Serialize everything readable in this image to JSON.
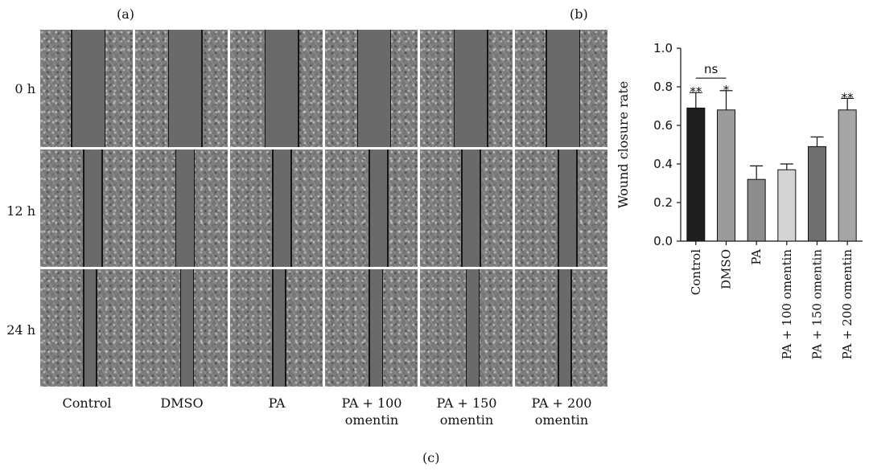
{
  "panel_labels": {
    "a": "(a)",
    "b": "(b)",
    "c": "(c)"
  },
  "micrographs": {
    "time_labels": [
      "0 h",
      "12 h",
      "24 h"
    ],
    "groups": [
      {
        "label_line1": "Control",
        "label_line2": ""
      },
      {
        "label_line1": "DMSO",
        "label_line2": ""
      },
      {
        "label_line1": "PA",
        "label_line2": ""
      },
      {
        "label_line1": "PA + 100",
        "label_line2": "omentin"
      },
      {
        "label_line1": "PA + 150",
        "label_line2": "omentin"
      },
      {
        "label_line1": "PA + 200",
        "label_line2": "omentin"
      }
    ],
    "colors": {
      "cells": "#7b7b7b",
      "wound_gap": "#6a6a6a",
      "wound_edge": "#151515"
    }
  },
  "chart_data": {
    "type": "bar",
    "title": "",
    "xlabel": "",
    "ylabel": "Wound closure rate",
    "ylim": [
      0,
      1.0
    ],
    "yticks": [
      "0.0",
      "0.2",
      "0.4",
      "0.6",
      "0.8",
      "1.0"
    ],
    "categories": [
      "Control",
      "DMSO",
      "PA",
      "PA + 100 omentin",
      "PA + 150 omentin",
      "PA + 200 omentin"
    ],
    "values": [
      0.69,
      0.68,
      0.32,
      0.37,
      0.49,
      0.68
    ],
    "errors": [
      0.08,
      0.1,
      0.07,
      0.03,
      0.05,
      0.06
    ],
    "significance": [
      "**",
      "*",
      "",
      "",
      "",
      "**"
    ],
    "bracket": {
      "from": 0,
      "to": 1,
      "label": "ns"
    },
    "bar_colors": [
      "#1e1e1e",
      "#9b9b9b",
      "#8c8c8c",
      "#d4d4d4",
      "#6e6e6e",
      "#a5a5a5"
    ],
    "grid": false
  }
}
